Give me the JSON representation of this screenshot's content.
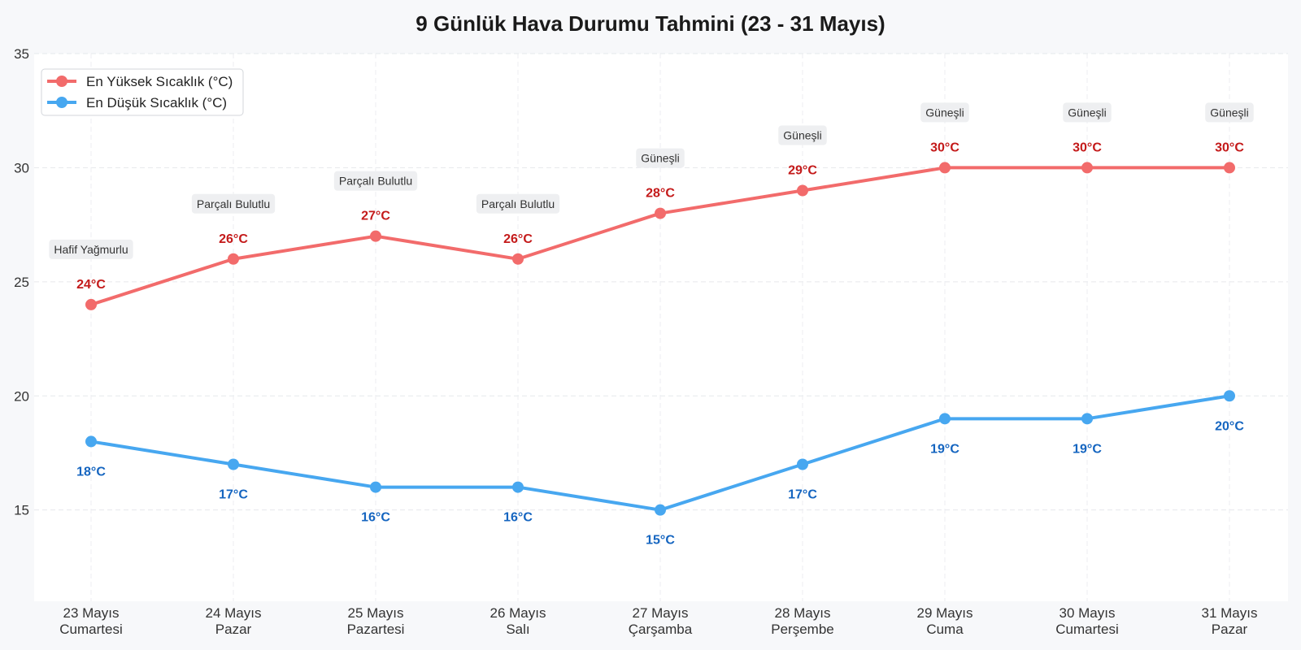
{
  "chart_data": {
    "type": "line",
    "title": "9 Günlük Hava Durumu Tahmini (23 - 31 Mayıs)",
    "xlabel": "",
    "ylabel": "",
    "categories": [
      [
        "23 Mayıs",
        "Cumartesi"
      ],
      [
        "24 Mayıs",
        "Pazar"
      ],
      [
        "25 Mayıs",
        "Pazartesi"
      ],
      [
        "26 Mayıs",
        "Salı"
      ],
      [
        "27 Mayıs",
        "Çarşamba"
      ],
      [
        "28 Mayıs",
        "Perşembe"
      ],
      [
        "29 Mayıs",
        "Cuma"
      ],
      [
        "30 Mayıs",
        "Cumartesi"
      ],
      [
        "31 Mayıs",
        "Pazar"
      ]
    ],
    "series": [
      {
        "name": "En Yüksek Sıcaklık (°C)",
        "color": "#f26b6b",
        "label_color": "#c41a1a",
        "values": [
          24,
          26,
          27,
          26,
          28,
          29,
          30,
          30,
          30
        ],
        "labels": [
          "24°C",
          "26°C",
          "27°C",
          "26°C",
          "28°C",
          "29°C",
          "30°C",
          "30°C",
          "30°C"
        ]
      },
      {
        "name": "En Düşük Sıcaklık (°C)",
        "color": "#47a7f0",
        "label_color": "#1565c0",
        "values": [
          18,
          17,
          16,
          16,
          15,
          17,
          19,
          19,
          20
        ],
        "labels": [
          "18°C",
          "17°C",
          "16°C",
          "16°C",
          "15°C",
          "17°C",
          "19°C",
          "19°C",
          "20°C"
        ]
      }
    ],
    "conditions": [
      "Hafif Yağmurlu",
      "Parçalı Bulutlu",
      "Parçalı Bulutlu",
      "Parçalı Bulutlu",
      "Güneşli",
      "Güneşli",
      "Güneşli",
      "Güneşli",
      "Güneşli"
    ],
    "ylim": [
      11,
      35
    ],
    "yticks": [
      15,
      20,
      25,
      30,
      35
    ],
    "grid": true,
    "legend_position": "top-left"
  }
}
